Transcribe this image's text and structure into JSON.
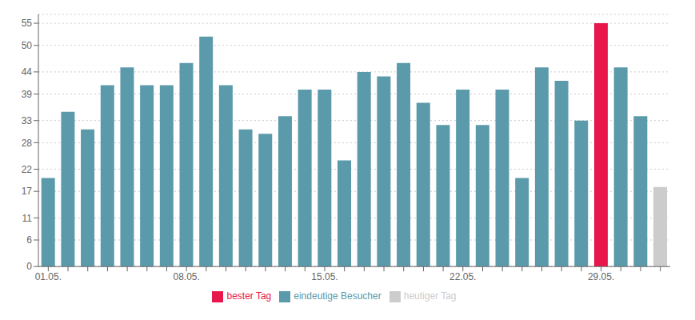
{
  "chart_data": {
    "type": "bar",
    "categories": [
      "01.05.",
      null,
      null,
      null,
      null,
      null,
      null,
      "08.05.",
      null,
      null,
      null,
      null,
      null,
      null,
      "15.05.",
      null,
      null,
      null,
      null,
      null,
      null,
      "22.05.",
      null,
      null,
      null,
      null,
      null,
      null,
      "29.05.",
      null,
      null,
      null
    ],
    "series": [
      {
        "name": "eindeutige Besucher",
        "color": "#5b9aaa",
        "values": [
          20,
          35,
          31,
          41,
          45,
          41,
          41,
          46,
          52,
          41,
          31,
          30,
          34,
          40,
          40,
          24,
          44,
          43,
          46,
          37,
          32,
          40,
          32,
          40,
          20,
          45,
          42,
          33,
          null,
          45,
          34,
          null
        ]
      },
      {
        "name": "bester Tag",
        "color": "#e8174b",
        "values": [
          null,
          null,
          null,
          null,
          null,
          null,
          null,
          null,
          null,
          null,
          null,
          null,
          null,
          null,
          null,
          null,
          null,
          null,
          null,
          null,
          null,
          null,
          null,
          null,
          null,
          null,
          null,
          null,
          55,
          null,
          null,
          null
        ]
      },
      {
        "name": "heutiger Tag",
        "color": "#cccccc",
        "values": [
          null,
          null,
          null,
          null,
          null,
          null,
          null,
          null,
          null,
          null,
          null,
          null,
          null,
          null,
          null,
          null,
          null,
          null,
          null,
          null,
          null,
          null,
          null,
          null,
          null,
          null,
          null,
          null,
          null,
          null,
          null,
          18
        ]
      }
    ],
    "ylim": [
      0,
      57
    ],
    "yticks": [
      0,
      6,
      11,
      17,
      22,
      28,
      33,
      39,
      44,
      50,
      55
    ],
    "grid": true,
    "legend": "bottom"
  }
}
